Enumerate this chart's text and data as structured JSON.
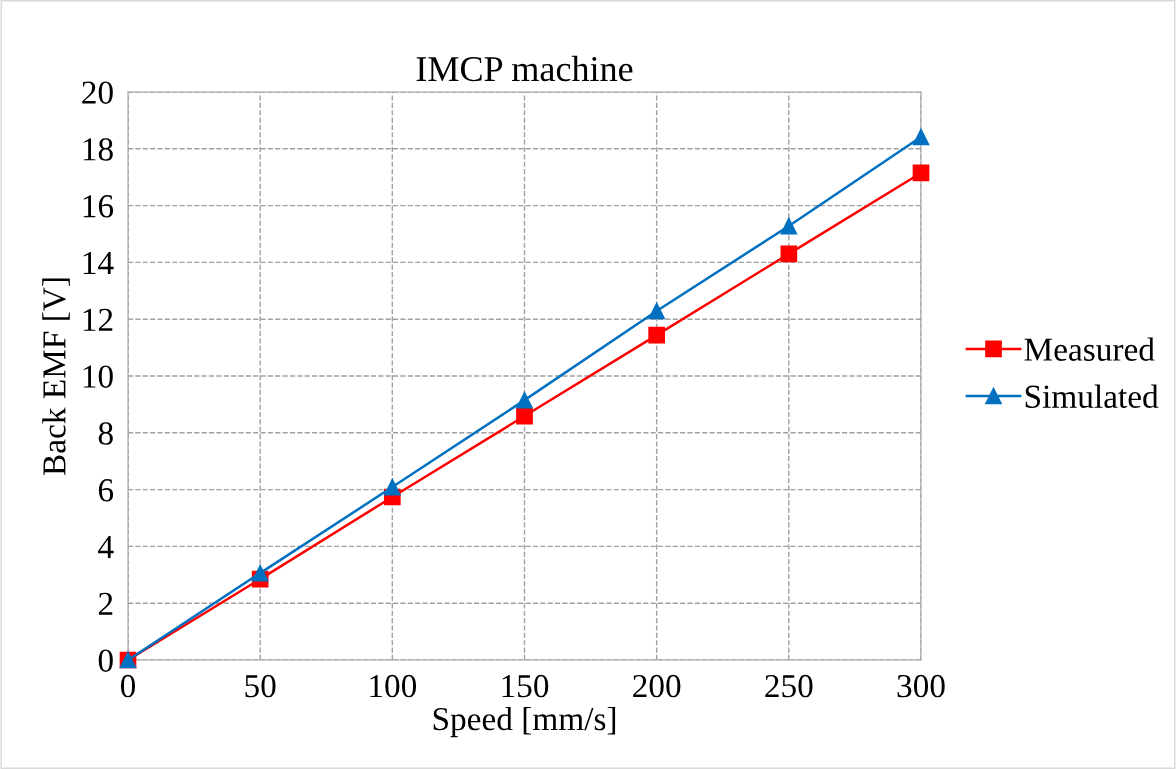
{
  "chart_data": {
    "type": "line",
    "title": "IMCP machine",
    "xlabel": "Speed [mm/s]",
    "ylabel": "Back EMF [V]",
    "x": [
      0,
      50,
      100,
      150,
      200,
      250,
      300
    ],
    "series": [
      {
        "name": "Measured",
        "color": "#ff0000",
        "marker": "square",
        "values": [
          0,
          2.85,
          5.74,
          8.59,
          11.44,
          14.3,
          17.15
        ]
      },
      {
        "name": "Simulated",
        "color": "#0070c0",
        "marker": "triangle",
        "values": [
          0,
          3.06,
          6.09,
          9.15,
          12.29,
          15.28,
          18.42
        ]
      }
    ],
    "xlim": [
      0,
      300
    ],
    "xticks": [
      0,
      50,
      100,
      150,
      200,
      250,
      300
    ],
    "ylim": [
      0,
      20
    ],
    "yticks": [
      0,
      2,
      4,
      6,
      8,
      10,
      12,
      14,
      16,
      18,
      20
    ],
    "grid": true,
    "legend": "right",
    "line_style": "solid"
  }
}
